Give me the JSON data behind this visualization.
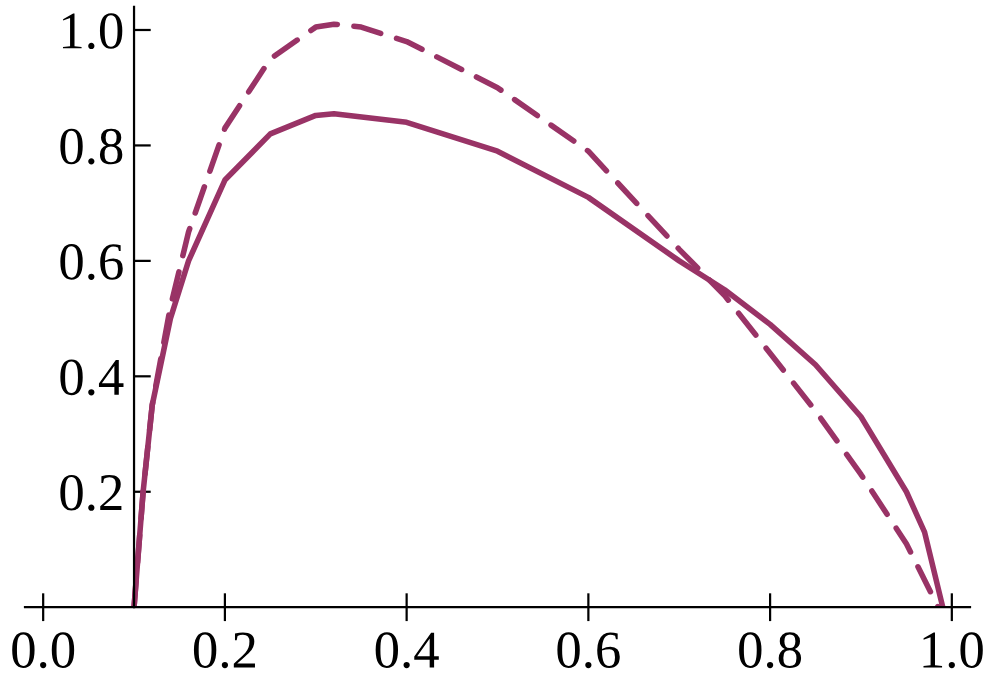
{
  "chart_data": {
    "type": "line",
    "xlim": [
      -0.02,
      1.02
    ],
    "ylim": [
      0,
      1.04
    ],
    "xticks": [
      {
        "value": 0.0,
        "label": "0.0"
      },
      0.2,
      0.4,
      0.6,
      0.8,
      {
        "value": 1.0,
        "label": "1.0"
      }
    ],
    "yticks": [
      0.2,
      0.4,
      0.6,
      0.8,
      {
        "value": 1.0,
        "label": "1.0"
      }
    ],
    "series": [
      {
        "color": "#993366",
        "line_style": "solid",
        "x": [
          0.1,
          0.105,
          0.11,
          0.12,
          0.14,
          0.16,
          0.2,
          0.25,
          0.3,
          0.32,
          0.4,
          0.5,
          0.6,
          0.7,
          0.75,
          0.8,
          0.85,
          0.9,
          0.95,
          0.97,
          0.99
        ],
        "values": [
          0,
          0.1,
          0.2,
          0.35,
          0.5,
          0.6,
          0.74,
          0.82,
          0.852,
          0.855,
          0.84,
          0.79,
          0.71,
          0.6,
          0.55,
          0.49,
          0.42,
          0.33,
          0.2,
          0.13,
          0
        ]
      },
      {
        "color": "#993366",
        "line_style": "dashed",
        "x": [
          0.1,
          0.105,
          0.11,
          0.12,
          0.14,
          0.16,
          0.2,
          0.25,
          0.3,
          0.32,
          0.35,
          0.4,
          0.5,
          0.6,
          0.7,
          0.75,
          0.8,
          0.85,
          0.9,
          0.95,
          0.985
        ],
        "values": [
          0,
          0.1,
          0.2,
          0.35,
          0.52,
          0.65,
          0.83,
          0.95,
          1.005,
          1.01,
          1.005,
          0.98,
          0.9,
          0.79,
          0.62,
          0.54,
          0.44,
          0.34,
          0.23,
          0.11,
          0
        ]
      }
    ]
  }
}
